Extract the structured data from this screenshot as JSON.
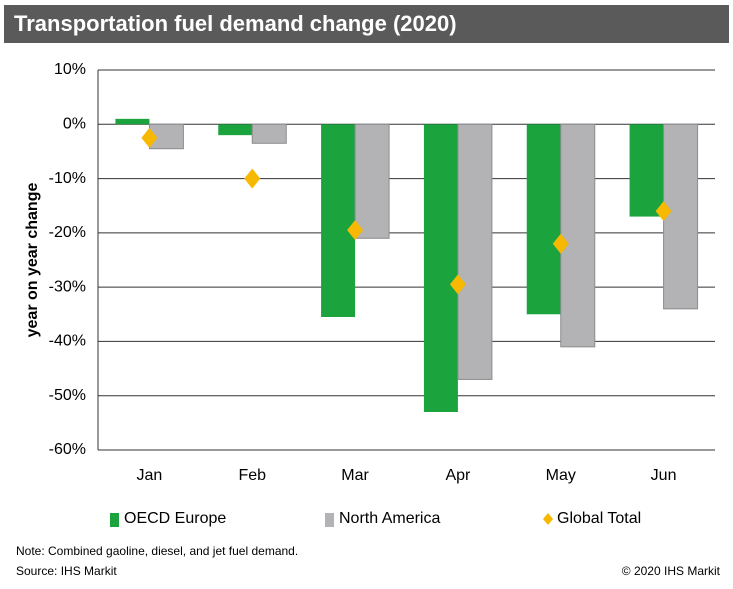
{
  "chart_data": {
    "type": "bar",
    "title": "Transportation fuel demand change (2020)",
    "ylabel": "year on year change",
    "categories": [
      "Jan",
      "Feb",
      "Mar",
      "Apr",
      "May",
      "Jun"
    ],
    "series": [
      {
        "name": "OECD Europe",
        "color": "#1ba33d",
        "type": "bar",
        "values": [
          1,
          -2,
          -35.5,
          -53,
          -35,
          -17
        ]
      },
      {
        "name": "North America",
        "color": "#b3b3b6",
        "type": "bar",
        "values": [
          -4.5,
          -3.5,
          -21,
          -47,
          -41,
          -34
        ]
      },
      {
        "name": "Global Total",
        "color": "#f6b800",
        "type": "diamond",
        "values": [
          -2.5,
          -10,
          -19.5,
          -29.5,
          -22,
          -16
        ]
      }
    ],
    "ylim": [
      -60,
      10
    ],
    "yticks": [
      {
        "value": 10,
        "label": "10%"
      },
      {
        "value": 0,
        "label": "0%"
      },
      {
        "value": -10,
        "label": "-10%"
      },
      {
        "value": -20,
        "label": "-20%"
      },
      {
        "value": -30,
        "label": "-30%"
      },
      {
        "value": -40,
        "label": "-40%"
      },
      {
        "value": -50,
        "label": "-50%"
      },
      {
        "value": -60,
        "label": "-60%"
      }
    ],
    "grid": true,
    "legend": "bottom",
    "note": "Note: Combined gaoline, diesel, and jet fuel demand.",
    "source": "Source: IHS Markit",
    "copyright": "© 2020 IHS Markit"
  }
}
